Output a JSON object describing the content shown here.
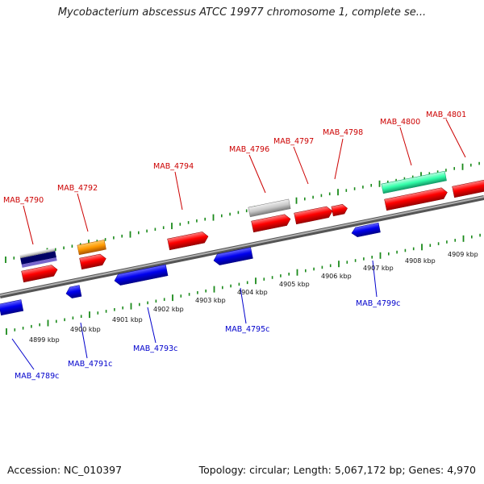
{
  "title": "Mycobacterium abscessus ATCC 19977 chromosome 1, complete se...",
  "footer": {
    "accession": "Accession: NC_010397",
    "summary": "Topology: circular; Length: 5,067,172 bp; Genes: 4,970"
  },
  "colors": {
    "forward_gene": "#ff0000",
    "reverse_gene": "#0000ff",
    "forward_label": "#cc0000",
    "reverse_label": "#0000cc",
    "backbone": "#808080",
    "tick": "#1a8a1a",
    "feature_orange": "#ff9900",
    "feature_teal": "#33ffaa",
    "feature_gray": "#c8c8c8",
    "feature_navy": "#000066",
    "feature_purple": "#7766cc"
  },
  "forward_labels": [
    "MAB_4790",
    "MAB_4792",
    "MAB_4794",
    "MAB_4796",
    "MAB_4797",
    "MAB_4798",
    "MAB_4800",
    "MAB_4801"
  ],
  "reverse_labels": [
    "MAB_4789c",
    "MAB_4791c",
    "MAB_4793c",
    "MAB_4795c",
    "MAB_4799c"
  ],
  "tick_labels": [
    "4899 kbp",
    "4900 kbp",
    "4901 kbp",
    "4902 kbp",
    "4903 kbp",
    "4904 kbp",
    "4905 kbp",
    "4906 kbp",
    "4907 kbp",
    "4908 kbp",
    "4909 kbp"
  ]
}
